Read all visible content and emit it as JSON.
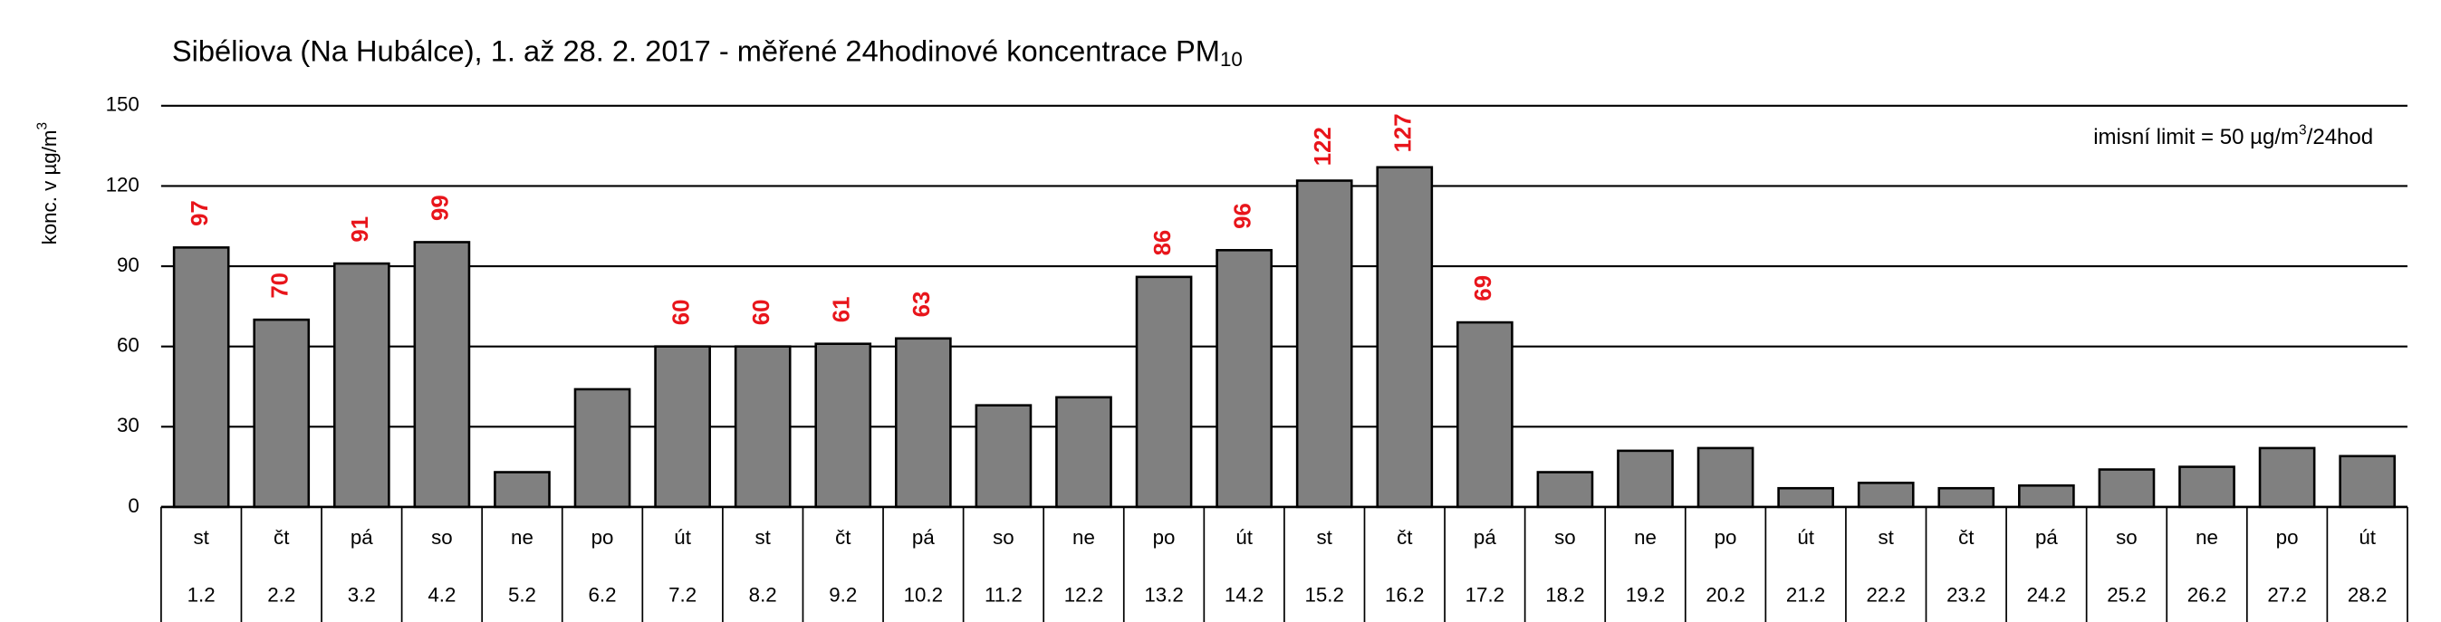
{
  "chart_data": {
    "type": "bar",
    "title": "Sibéliova (Na Hubálce), 1. až 28. 2. 2017 - měřené 24hodinové koncentrace PM",
    "title_subscript": "10",
    "y_label": "konc. v µg/m",
    "y_label_superscript": "3",
    "annotation_prefix": "imisní limit = ",
    "limit": 50,
    "annotation_unit": " µg/m",
    "annotation_superscript": "3",
    "annotation_suffix": "/24hod",
    "categories": [
      "1.2",
      "2.2",
      "3.2",
      "4.2",
      "5.2",
      "6.2",
      "7.2",
      "8.2",
      "9.2",
      "10.2",
      "11.2",
      "12.2",
      "13.2",
      "14.2",
      "15.2",
      "16.2",
      "17.2",
      "18.2",
      "19.2",
      "20.2",
      "21.2",
      "22.2",
      "23.2",
      "24.2",
      "25.2",
      "26.2",
      "27.2",
      "28.2"
    ],
    "weekdays": [
      "st",
      "čt",
      "pá",
      "so",
      "ne",
      "po",
      "út",
      "st",
      "čt",
      "pá",
      "so",
      "ne",
      "po",
      "út",
      "st",
      "čt",
      "pá",
      "so",
      "ne",
      "po",
      "út",
      "st",
      "čt",
      "pá",
      "so",
      "ne",
      "po",
      "út"
    ],
    "values": [
      97,
      70,
      91,
      99,
      13,
      44,
      60,
      60,
      61,
      63,
      38,
      41,
      86,
      96,
      122,
      127,
      69,
      13,
      21,
      22,
      7,
      9,
      7,
      8,
      14,
      15,
      22,
      19
    ],
    "color": "#808080",
    "label_color": "#e8151b",
    "ylim": [
      0,
      150
    ],
    "yticks": [
      0,
      30,
      60,
      90,
      120,
      150
    ],
    "grid": true
  }
}
